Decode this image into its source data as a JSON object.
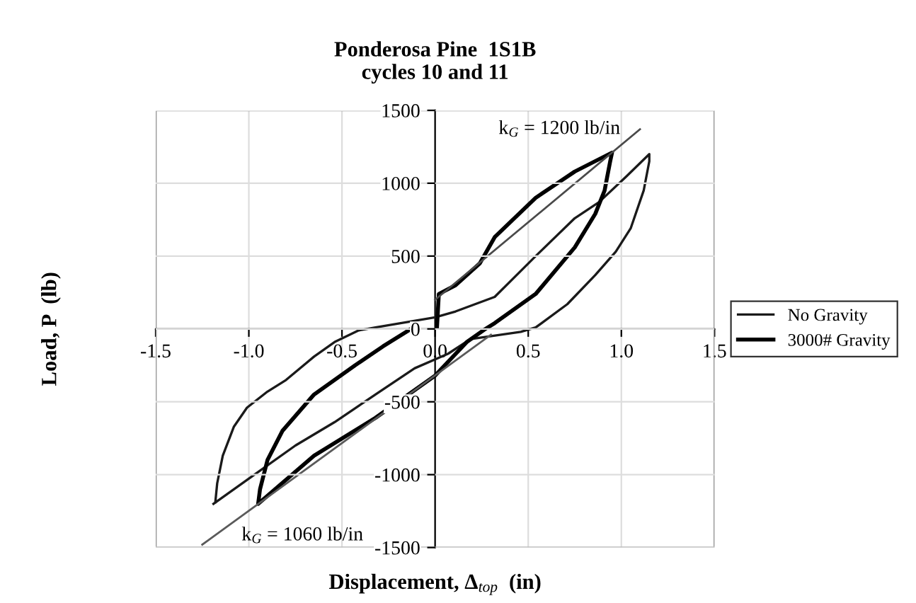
{
  "chart_data": {
    "type": "line",
    "title": "Ponderosa Pine  1S1B\ncycles 10 and 11",
    "xlabel": "Displacement, Δ$_{top}$  (in)",
    "ylabel": "Load, P  (lb)",
    "xlim": [
      -1.5,
      1.5
    ],
    "xticks": [
      {
        "value": -1.5,
        "label": "-1.5"
      },
      {
        "value": -1.0,
        "label": "-1.0"
      },
      {
        "value": -0.5,
        "label": "-0.5"
      },
      {
        "value": 0,
        "label": "0.0"
      },
      {
        "value": 0.5,
        "label": "0.5"
      },
      {
        "value": 1.0,
        "label": "1.0"
      },
      {
        "value": 1.5,
        "label": "1.5"
      }
    ],
    "ylim": [
      -1500,
      1500
    ],
    "yticks": [
      -1500,
      -1000,
      -500,
      0,
      500,
      1000,
      1500
    ],
    "grid": true,
    "legend": "right",
    "marker": "none",
    "line_style": "solid",
    "series": [
      {
        "name": "No Gravity",
        "color": "#1a1a1a",
        "x": [
          -1.18,
          -1.17,
          -1.14,
          -1.08,
          -1.01,
          -0.9,
          -0.8,
          -0.65,
          -0.54,
          -0.41,
          -0.32,
          0.0,
          0.11,
          0.32,
          0.54,
          0.75,
          0.88,
          1.03,
          1.15,
          1.15,
          1.12,
          1.05,
          0.97,
          0.86,
          0.71,
          0.54,
          0.46,
          0.19,
          0.07,
          -0.11,
          -0.32,
          -0.54,
          -0.75,
          -0.97,
          -1.19
        ],
        "values": [
          -1190,
          -1060,
          -870,
          -670,
          -540,
          -430,
          -350,
          -190,
          -90,
          -10,
          10,
          80,
          120,
          220,
          500,
          760,
          870,
          1050,
          1200,
          1150,
          950,
          690,
          530,
          370,
          170,
          10,
          -20,
          -70,
          -170,
          -270,
          -450,
          -640,
          -800,
          -1000,
          -1200
        ]
      },
      {
        "name": "3000# Gravity",
        "color": "#000000",
        "x": [
          0.01,
          0.02,
          0.11,
          0.24,
          0.32,
          0.54,
          0.75,
          0.95,
          0.94,
          0.91,
          0.86,
          0.75,
          0.54,
          0.32,
          0.27,
          0.17,
          0.0,
          -0.32,
          -0.65,
          -0.95,
          -0.94,
          -0.9,
          -0.82,
          -0.65,
          -0.43,
          -0.28,
          -0.13
        ],
        "values": [
          10,
          240,
          300,
          450,
          630,
          900,
          1080,
          1210,
          1150,
          950,
          790,
          560,
          240,
          40,
          0,
          -90,
          -320,
          -610,
          -870,
          -1200,
          -1100,
          -900,
          -700,
          -450,
          -250,
          -120,
          0
        ]
      },
      {
        "color": "#4a4a4a",
        "x": [
          0.0,
          1.1
        ],
        "values": [
          200,
          1370
        ]
      },
      {
        "color": "#5a5a5a",
        "x": [
          -1.25,
          0.3
        ],
        "values": [
          -1480,
          -40
        ]
      }
    ],
    "annotations": [
      {
        "text": "k$_{G}$ = 1200 lb/in",
        "x": 1.1,
        "y": 1370
      },
      {
        "text": "k$_{G}$ = 1060 lb/in",
        "x": -1.25,
        "y": -1480
      }
    ]
  }
}
